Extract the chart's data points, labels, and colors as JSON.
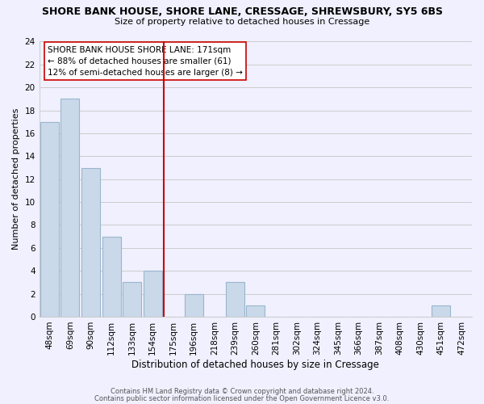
{
  "title1": "SHORE BANK HOUSE, SHORE LANE, CRESSAGE, SHREWSBURY, SY5 6BS",
  "title2": "Size of property relative to detached houses in Cressage",
  "xlabel": "Distribution of detached houses by size in Cressage",
  "ylabel": "Number of detached properties",
  "bar_labels": [
    "48sqm",
    "69sqm",
    "90sqm",
    "112sqm",
    "133sqm",
    "154sqm",
    "175sqm",
    "196sqm",
    "218sqm",
    "239sqm",
    "260sqm",
    "281sqm",
    "302sqm",
    "324sqm",
    "345sqm",
    "366sqm",
    "387sqm",
    "408sqm",
    "430sqm",
    "451sqm",
    "472sqm"
  ],
  "bar_values": [
    17,
    19,
    13,
    7,
    3,
    4,
    0,
    2,
    0,
    3,
    1,
    0,
    0,
    0,
    0,
    0,
    0,
    0,
    0,
    1,
    0
  ],
  "bar_color": "#c9d9ea",
  "bar_edge_color": "#9bb5cc",
  "vline_color": "#cc0000",
  "annotation_text": "SHORE BANK HOUSE SHORE LANE: 171sqm\n← 88% of detached houses are smaller (61)\n12% of semi-detached houses are larger (8) →",
  "annotation_box_color": "white",
  "annotation_box_edge": "#cc0000",
  "ylim": [
    0,
    24
  ],
  "yticks": [
    0,
    2,
    4,
    6,
    8,
    10,
    12,
    14,
    16,
    18,
    20,
    22,
    24
  ],
  "grid_color": "#cccccc",
  "background_color": "#f0f0ff",
  "footer1": "Contains HM Land Registry data © Crown copyright and database right 2024.",
  "footer2": "Contains public sector information licensed under the Open Government Licence v3.0."
}
